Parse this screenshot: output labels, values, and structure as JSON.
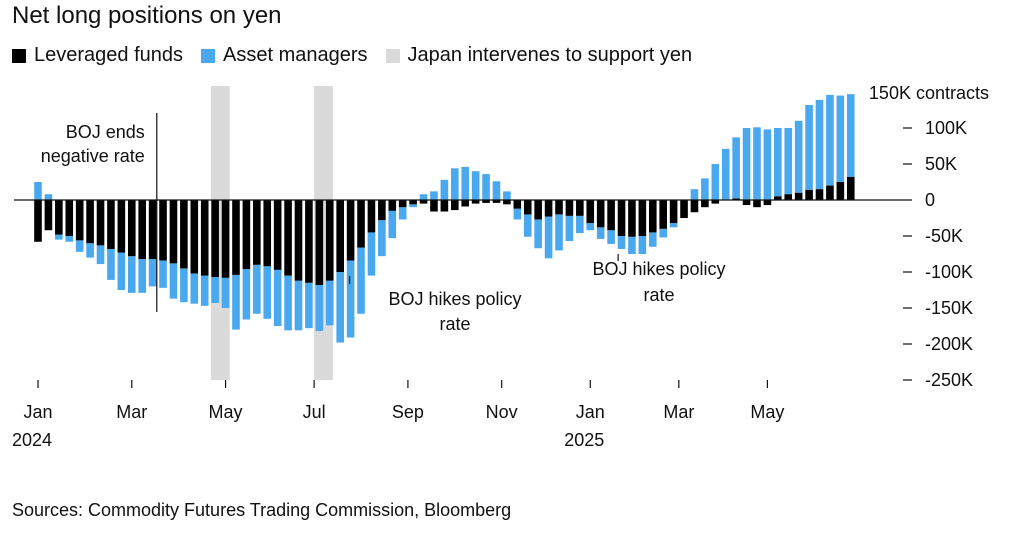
{
  "colors": {
    "leveraged": "#000000",
    "asset": "#4aa8ee",
    "shade": "#dadada",
    "axis": "#111111"
  },
  "chart_data": {
    "type": "bar",
    "stacked": true,
    "title": "Net long positions on yen",
    "unit_label": "150K contracts",
    "legend": [
      "Leveraged funds",
      "Asset managers",
      "Japan intervenes to support yen"
    ],
    "legend_position": "top-left",
    "ylim": [
      -250,
      150
    ],
    "y_ticks": [
      {
        "value": 100,
        "label": "100K"
      },
      {
        "value": 50,
        "label": "50K"
      },
      {
        "value": 0,
        "label": "0"
      },
      {
        "value": -50,
        "label": "-50K"
      },
      {
        "value": -100,
        "label": "-100K"
      },
      {
        "value": -150,
        "label": "-150K"
      },
      {
        "value": -200,
        "label": "-200K"
      },
      {
        "value": -250,
        "label": "-250K"
      }
    ],
    "x_ticks": [
      {
        "week": 0,
        "label": "Jan",
        "year": "2024"
      },
      {
        "week": 9,
        "label": "Mar"
      },
      {
        "week": 18,
        "label": "May"
      },
      {
        "week": 26.5,
        "label": "Jul"
      },
      {
        "week": 35.5,
        "label": "Sep"
      },
      {
        "week": 44.5,
        "label": "Nov"
      },
      {
        "week": 53,
        "label": "Jan",
        "year": "2025"
      },
      {
        "week": 61.5,
        "label": "Mar"
      },
      {
        "week": 70,
        "label": "May"
      }
    ],
    "series": [
      {
        "name": "Leveraged funds",
        "values": [
          -58,
          -42,
          -48,
          -50,
          -56,
          -60,
          -63,
          -68,
          -73,
          -78,
          -82,
          -82,
          -84,
          -88,
          -95,
          -102,
          -105,
          -107,
          -108,
          -104,
          -96,
          -90,
          -92,
          -97,
          -105,
          -112,
          -115,
          -118,
          -112,
          -100,
          -84,
          -66,
          -45,
          -28,
          -15,
          -10,
          -6,
          -5,
          -16,
          -16,
          -14,
          -9,
          -5,
          -4,
          -4,
          -6,
          -12,
          -20,
          -27,
          -23,
          -20,
          -22,
          -22,
          -32,
          -38,
          -42,
          -50,
          -51,
          -50,
          -45,
          -40,
          -32,
          -25,
          -17,
          -10,
          -5,
          0,
          2,
          -7,
          -10,
          -7,
          5,
          8,
          10,
          14,
          15,
          20,
          25,
          32
        ]
      },
      {
        "name": "Asset managers",
        "values": [
          25,
          8,
          -7,
          -8,
          -16,
          -20,
          -26,
          -43,
          -52,
          -51,
          -47,
          -38,
          -38,
          -49,
          -47,
          -42,
          -42,
          -36,
          -42,
          -76,
          -70,
          -68,
          -73,
          -78,
          -76,
          -69,
          -63,
          -64,
          -62,
          -98,
          -107,
          -92,
          -60,
          -50,
          -38,
          -17,
          -4,
          8,
          12,
          28,
          44,
          46,
          40,
          36,
          26,
          12,
          -15,
          -31,
          -40,
          -58,
          -50,
          -35,
          -24,
          -10,
          -16,
          -19,
          -18,
          -24,
          -25,
          -20,
          -12,
          -6,
          0,
          15,
          30,
          50,
          71,
          85,
          100,
          101,
          98,
          95,
          92,
          100,
          118,
          124,
          126,
          120,
          115
        ]
      }
    ],
    "intervention_bands": [
      {
        "start_week": 16.6,
        "end_week": 18.4
      },
      {
        "start_week": 26.5,
        "end_week": 28.3
      }
    ],
    "annotations": [
      {
        "lines": [
          "BOJ ends",
          "negative rate"
        ],
        "week": 11.4
      },
      {
        "lines": [
          "BOJ hikes policy",
          "rate"
        ],
        "week": 29.9
      },
      {
        "lines": [
          "BOJ hikes policy",
          "rate"
        ],
        "week": 55.1
      }
    ]
  },
  "source": "Sources: Commodity Futures Trading Commission, Bloomberg"
}
